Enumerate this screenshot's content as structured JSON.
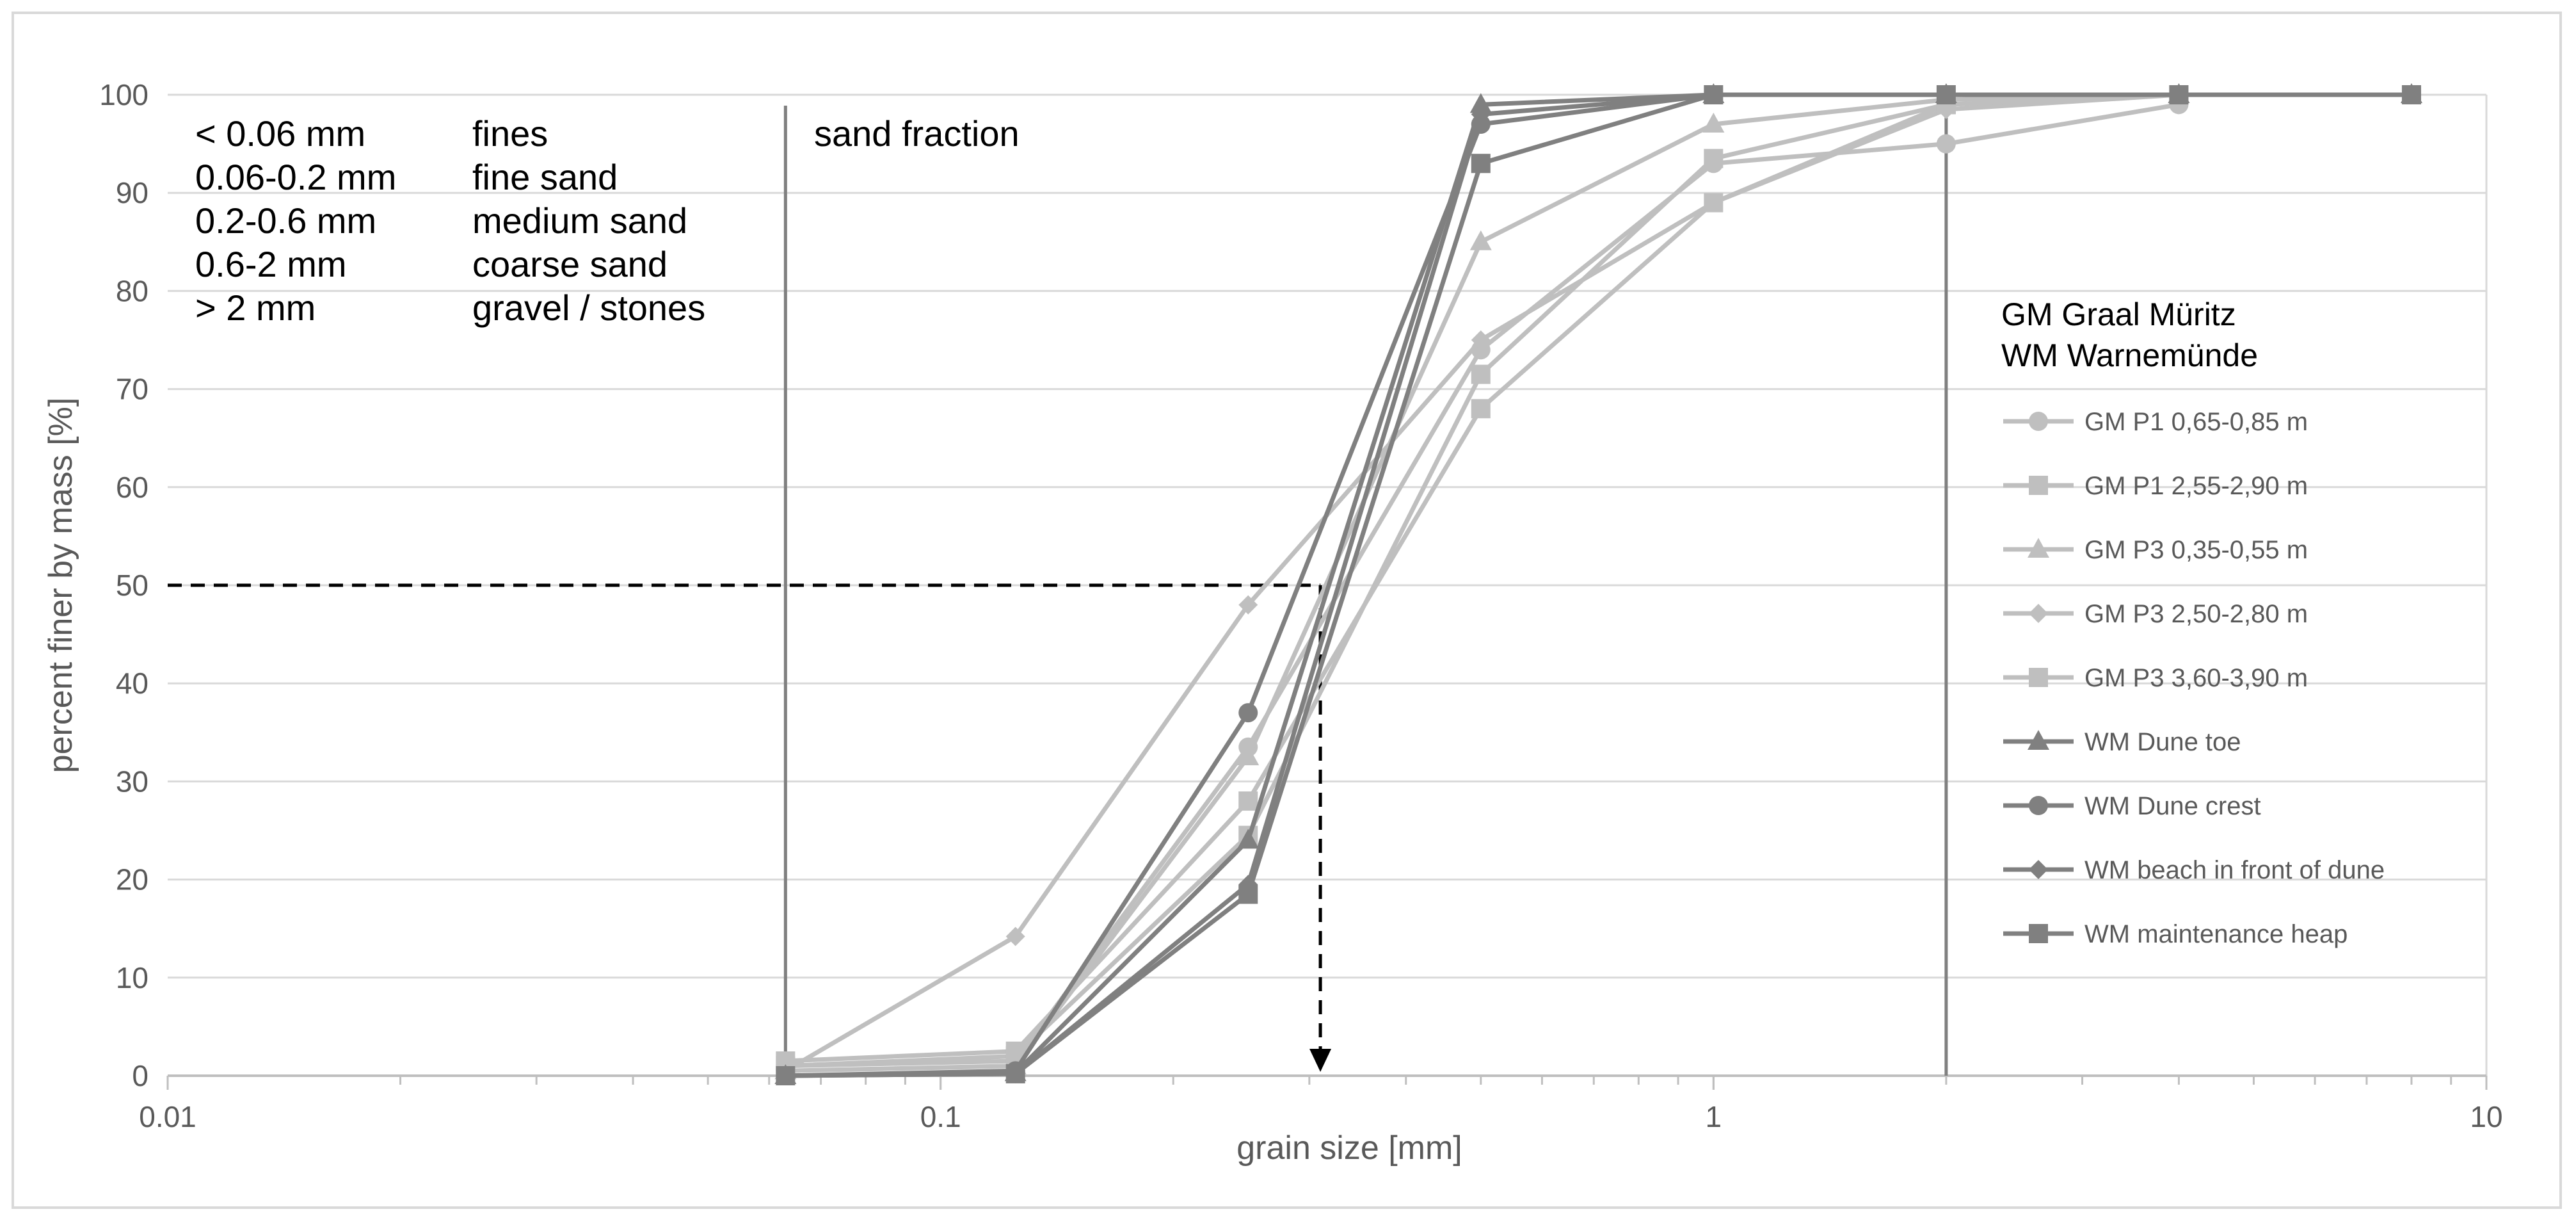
{
  "chart_data": {
    "type": "line",
    "xscale": "log",
    "xlim": [
      0.01,
      10
    ],
    "ylim": [
      0,
      100
    ],
    "xlabel": "grain size [mm]",
    "ylabel": "percent finer by mass [%]",
    "x_tick_labels": [
      "0.01",
      "0.1",
      "1",
      "10"
    ],
    "y_tick_labels": [
      "0",
      "10",
      "20",
      "30",
      "40",
      "50",
      "60",
      "70",
      "80",
      "90",
      "100"
    ],
    "grid": "horizontal",
    "legend_position": "right",
    "classification": [
      {
        "range": "< 0.06 mm",
        "name": "fines"
      },
      {
        "range": "0.06-0.2 mm",
        "name": "fine sand"
      },
      {
        "range": "0.2-0.6 mm",
        "name": "medium sand"
      },
      {
        "range": "0.6-2 mm",
        "name": "coarse sand"
      },
      {
        "range": "> 2 mm",
        "name": "gravel / stones"
      }
    ],
    "sand_fraction_label": "sand fraction",
    "sand_fraction_bounds": [
      0.063,
      2
    ],
    "legend_heading": [
      "GM Graal Müritz",
      "WM Warnemünde"
    ],
    "d50_marker": {
      "x": 0.31,
      "y": 50
    },
    "colors": {
      "gm": "#bfbfbf",
      "wm": "#808080",
      "grid": "#d9d9d9",
      "boundary": "#808080",
      "guide": "#000000"
    },
    "series": [
      {
        "name": "GM P1 0,65-0,85 m",
        "marker": "circle",
        "color": "#bfbfbf",
        "x": [
          0.063,
          0.125,
          0.25,
          0.5,
          1,
          2,
          4
        ],
        "y": [
          1.0,
          1.5,
          33.5,
          74,
          93,
          95,
          99
        ]
      },
      {
        "name": "GM P1 2,55-2,90 m",
        "marker": "square",
        "color": "#bfbfbf",
        "x": [
          0.063,
          0.125,
          0.25,
          0.5,
          1,
          2,
          4,
          8
        ],
        "y": [
          1.5,
          2.5,
          28,
          68,
          89,
          99,
          100,
          100
        ]
      },
      {
        "name": "GM P3 0,35-0,55 m",
        "marker": "triangle",
        "color": "#bfbfbf",
        "x": [
          0.063,
          0.125,
          0.25,
          0.5,
          1,
          2,
          4,
          8
        ],
        "y": [
          0.5,
          1.0,
          32.5,
          85,
          97,
          99.5,
          100,
          100
        ]
      },
      {
        "name": "GM P3 2,50-2,80 m",
        "marker": "diamond",
        "color": "#bfbfbf",
        "x": [
          0.063,
          0.125,
          0.25,
          0.5,
          1,
          2,
          4,
          8
        ],
        "y": [
          0.5,
          14.2,
          48,
          75,
          89,
          98.5,
          100,
          100
        ]
      },
      {
        "name": "GM P3 3,60-3,90 m",
        "marker": "square",
        "color": "#bfbfbf",
        "x": [
          0.063,
          0.125,
          0.25,
          0.5,
          1,
          2,
          4,
          8
        ],
        "y": [
          1.0,
          2.0,
          24.5,
          71.5,
          93.5,
          99,
          100,
          100
        ]
      },
      {
        "name": "WM Dune toe",
        "marker": "triangle",
        "color": "#808080",
        "x": [
          0.063,
          0.125,
          0.25,
          0.5,
          1,
          2,
          4,
          8
        ],
        "y": [
          0,
          0.3,
          24,
          99,
          100,
          100,
          100,
          100
        ]
      },
      {
        "name": "WM Dune crest",
        "marker": "circle",
        "color": "#808080",
        "x": [
          0.063,
          0.125,
          0.25,
          0.5,
          1,
          2,
          4,
          8
        ],
        "y": [
          0,
          0.5,
          37,
          97,
          100,
          100,
          100,
          100
        ]
      },
      {
        "name": "WM beach in front of dune",
        "marker": "diamond",
        "color": "#808080",
        "x": [
          0.063,
          0.125,
          0.25,
          0.5,
          1,
          2,
          4,
          8
        ],
        "y": [
          0,
          0.2,
          19.5,
          98,
          100,
          100,
          100,
          100
        ]
      },
      {
        "name": "WM maintenance heap",
        "marker": "square",
        "color": "#808080",
        "x": [
          0.063,
          0.125,
          0.25,
          0.5,
          1,
          2,
          4,
          8
        ],
        "y": [
          0,
          0.2,
          18.5,
          93,
          100,
          100,
          100,
          100
        ]
      }
    ]
  }
}
